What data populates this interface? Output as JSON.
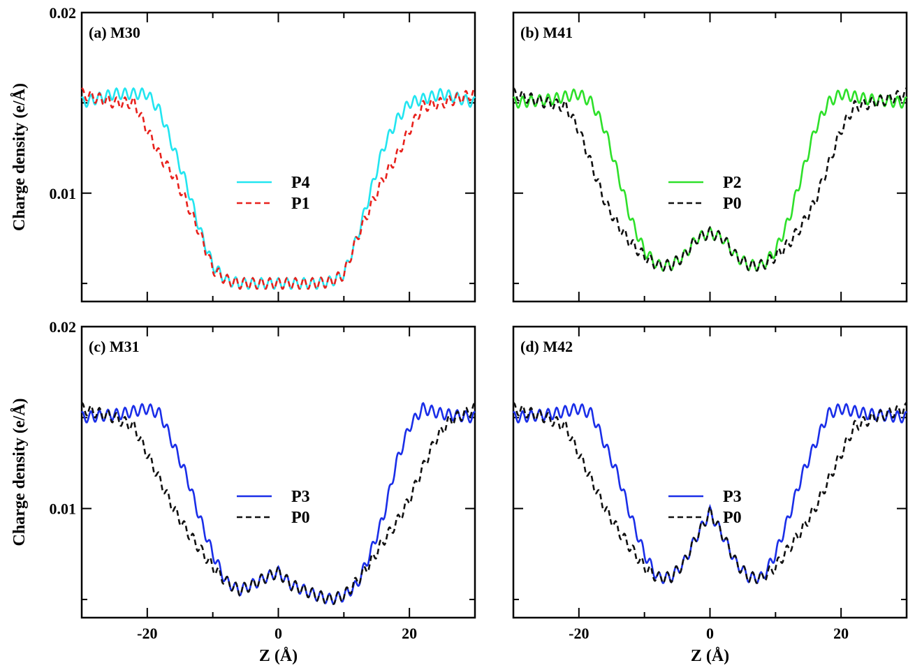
{
  "chart_data": [
    {
      "type": "line",
      "panel_label": "(a) M30",
      "xlim": [
        -30,
        30
      ],
      "ylim": [
        0.004,
        0.02
      ],
      "y_ticks": [
        "0.02",
        "0.01"
      ],
      "x_ticks": [],
      "ylabel": "Charge density (e/Å)",
      "xlabel": "",
      "legend_position": "center",
      "series": [
        {
          "name": "P4",
          "color": "#22e5f0",
          "style": "solid",
          "points": [
            [
              -30,
              0.015
            ],
            [
              -25,
              0.0155
            ],
            [
              -20,
              0.0155
            ],
            [
              -18,
              0.0145
            ],
            [
              -16,
              0.0125
            ],
            [
              -14,
              0.0105
            ],
            [
              -12,
              0.008
            ],
            [
              -10,
              0.006
            ],
            [
              -8,
              0.0052
            ],
            [
              -6,
              0.005
            ],
            [
              -2,
              0.005
            ],
            [
              0,
              0.005
            ],
            [
              2,
              0.005
            ],
            [
              6,
              0.005
            ],
            [
              8,
              0.0051
            ],
            [
              10,
              0.0055
            ],
            [
              12,
              0.0075
            ],
            [
              14,
              0.01
            ],
            [
              16,
              0.0125
            ],
            [
              18,
              0.014
            ],
            [
              20,
              0.015
            ],
            [
              25,
              0.0155
            ],
            [
              30,
              0.015
            ]
          ],
          "ripple": [
            0.0006,
            1.3
          ]
        },
        {
          "name": "P1",
          "color": "#e8211c",
          "style": "dashed",
          "points": [
            [
              -30,
              0.0155
            ],
            [
              -25,
              0.015
            ],
            [
              -22,
              0.015
            ],
            [
              -20,
              0.0135
            ],
            [
              -18,
              0.012
            ],
            [
              -16,
              0.011
            ],
            [
              -14,
              0.0095
            ],
            [
              -12,
              0.0078
            ],
            [
              -10,
              0.0058
            ],
            [
              -8,
              0.0052
            ],
            [
              -6,
              0.005
            ],
            [
              0,
              0.005
            ],
            [
              6,
              0.005
            ],
            [
              8,
              0.0051
            ],
            [
              10,
              0.0055
            ],
            [
              12,
              0.0075
            ],
            [
              14,
              0.0092
            ],
            [
              16,
              0.0108
            ],
            [
              18,
              0.012
            ],
            [
              20,
              0.0135
            ],
            [
              22,
              0.0148
            ],
            [
              25,
              0.015
            ],
            [
              30,
              0.0155
            ]
          ],
          "ripple": [
            0.0006,
            1.3
          ]
        }
      ]
    },
    {
      "type": "line",
      "panel_label": "(b) M41",
      "xlim": [
        -30,
        30
      ],
      "ylim": [
        0.004,
        0.02
      ],
      "y_ticks": [],
      "x_ticks": [],
      "ylabel": "",
      "xlabel": "",
      "legend_position": "center",
      "series": [
        {
          "name": "P2",
          "color": "#2ee02a",
          "style": "solid",
          "points": [
            [
              -30,
              0.015
            ],
            [
              -24,
              0.0152
            ],
            [
              -20,
              0.0155
            ],
            [
              -18,
              0.015
            ],
            [
              -16,
              0.0135
            ],
            [
              -14,
              0.011
            ],
            [
              -12,
              0.0085
            ],
            [
              -10,
              0.0068
            ],
            [
              -8,
              0.006
            ],
            [
              -6,
              0.006
            ],
            [
              -4,
              0.0065
            ],
            [
              -2,
              0.0075
            ],
            [
              0,
              0.0078
            ],
            [
              2,
              0.0075
            ],
            [
              4,
              0.0065
            ],
            [
              6,
              0.006
            ],
            [
              8,
              0.006
            ],
            [
              10,
              0.0068
            ],
            [
              12,
              0.0085
            ],
            [
              14,
              0.011
            ],
            [
              16,
              0.0135
            ],
            [
              18,
              0.015
            ],
            [
              20,
              0.0155
            ],
            [
              24,
              0.0152
            ],
            [
              30,
              0.015
            ]
          ],
          "ripple": [
            0.0006,
            1.3
          ]
        },
        {
          "name": "P0",
          "color": "#111111",
          "style": "dashed",
          "points": [
            [
              -30,
              0.0155
            ],
            [
              -25,
              0.015
            ],
            [
              -22,
              0.0148
            ],
            [
              -20,
              0.0135
            ],
            [
              -18,
              0.0115
            ],
            [
              -16,
              0.0095
            ],
            [
              -14,
              0.0082
            ],
            [
              -12,
              0.0072
            ],
            [
              -10,
              0.0065
            ],
            [
              -8,
              0.006
            ],
            [
              -6,
              0.006
            ],
            [
              -4,
              0.0065
            ],
            [
              -2,
              0.0075
            ],
            [
              0,
              0.0078
            ],
            [
              2,
              0.0075
            ],
            [
              4,
              0.0065
            ],
            [
              6,
              0.006
            ],
            [
              8,
              0.006
            ],
            [
              10,
              0.0065
            ],
            [
              12,
              0.0072
            ],
            [
              14,
              0.0082
            ],
            [
              16,
              0.0095
            ],
            [
              18,
              0.0115
            ],
            [
              20,
              0.0135
            ],
            [
              22,
              0.0148
            ],
            [
              25,
              0.015
            ],
            [
              30,
              0.0155
            ]
          ],
          "ripple": [
            0.0006,
            1.3
          ]
        }
      ]
    },
    {
      "type": "line",
      "panel_label": "(c) M31",
      "xlim": [
        -30,
        30
      ],
      "ylim": [
        0.004,
        0.02
      ],
      "y_ticks": [
        "0.02",
        "0.01"
      ],
      "x_ticks": [
        "-20",
        "0",
        "20"
      ],
      "ylabel": "Charge density (e/Å)",
      "xlabel": "Z (Å)",
      "legend_position": "center",
      "series": [
        {
          "name": "P3",
          "color": "#1a2ee8",
          "style": "solid",
          "points": [
            [
              -30,
              0.015
            ],
            [
              -24,
              0.0152
            ],
            [
              -20,
              0.0155
            ],
            [
              -18,
              0.0152
            ],
            [
              -16,
              0.0135
            ],
            [
              -14,
              0.0118
            ],
            [
              -12,
              0.0095
            ],
            [
              -10,
              0.0075
            ],
            [
              -8,
              0.006
            ],
            [
              -6,
              0.0055
            ],
            [
              -4,
              0.0058
            ],
            [
              -2,
              0.0062
            ],
            [
              0,
              0.0065
            ],
            [
              2,
              0.0058
            ],
            [
              4,
              0.0055
            ],
            [
              6,
              0.0052
            ],
            [
              8,
              0.005
            ],
            [
              10,
              0.0052
            ],
            [
              12,
              0.0058
            ],
            [
              14,
              0.0075
            ],
            [
              16,
              0.0095
            ],
            [
              18,
              0.0125
            ],
            [
              20,
              0.0145
            ],
            [
              22,
              0.0155
            ],
            [
              25,
              0.0152
            ],
            [
              30,
              0.015
            ]
          ],
          "ripple": [
            0.0006,
            1.3
          ]
        },
        {
          "name": "P0",
          "color": "#111111",
          "style": "dashed",
          "points": [
            [
              -30,
              0.0155
            ],
            [
              -25,
              0.015
            ],
            [
              -22,
              0.0145
            ],
            [
              -20,
              0.013
            ],
            [
              -18,
              0.0115
            ],
            [
              -16,
              0.01
            ],
            [
              -14,
              0.0088
            ],
            [
              -12,
              0.0078
            ],
            [
              -10,
              0.0068
            ],
            [
              -8,
              0.006
            ],
            [
              -6,
              0.0055
            ],
            [
              -4,
              0.0058
            ],
            [
              -2,
              0.0062
            ],
            [
              0,
              0.0065
            ],
            [
              2,
              0.0058
            ],
            [
              4,
              0.0055
            ],
            [
              6,
              0.0052
            ],
            [
              8,
              0.005
            ],
            [
              10,
              0.0052
            ],
            [
              12,
              0.006
            ],
            [
              14,
              0.007
            ],
            [
              16,
              0.0082
            ],
            [
              18,
              0.0092
            ],
            [
              20,
              0.0105
            ],
            [
              22,
              0.0122
            ],
            [
              24,
              0.0138
            ],
            [
              26,
              0.0148
            ],
            [
              30,
              0.0155
            ]
          ],
          "ripple": [
            0.0006,
            1.3
          ]
        }
      ]
    },
    {
      "type": "line",
      "panel_label": "(d) M42",
      "xlim": [
        -30,
        30
      ],
      "ylim": [
        0.004,
        0.02
      ],
      "y_ticks": [],
      "x_ticks": [
        "-20",
        "0",
        "20"
      ],
      "ylabel": "",
      "xlabel": "Z (Å)",
      "legend_position": "center",
      "series": [
        {
          "name": "P3",
          "color": "#1a2ee8",
          "style": "solid",
          "points": [
            [
              -30,
              0.015
            ],
            [
              -24,
              0.0152
            ],
            [
              -20,
              0.0155
            ],
            [
              -18,
              0.0152
            ],
            [
              -16,
              0.0135
            ],
            [
              -14,
              0.0118
            ],
            [
              -12,
              0.0095
            ],
            [
              -10,
              0.0075
            ],
            [
              -8,
              0.0062
            ],
            [
              -6,
              0.0062
            ],
            [
              -4,
              0.007
            ],
            [
              -2,
              0.0085
            ],
            [
              0,
              0.0098
            ],
            [
              2,
              0.0085
            ],
            [
              4,
              0.007
            ],
            [
              6,
              0.0062
            ],
            [
              8,
              0.0062
            ],
            [
              10,
              0.0075
            ],
            [
              12,
              0.0095
            ],
            [
              14,
              0.0118
            ],
            [
              16,
              0.0135
            ],
            [
              18,
              0.0152
            ],
            [
              20,
              0.0155
            ],
            [
              24,
              0.0152
            ],
            [
              30,
              0.015
            ]
          ],
          "ripple": [
            0.0006,
            1.3
          ]
        },
        {
          "name": "P0",
          "color": "#111111",
          "style": "dashed",
          "points": [
            [
              -30,
              0.0155
            ],
            [
              -25,
              0.015
            ],
            [
              -22,
              0.0145
            ],
            [
              -20,
              0.013
            ],
            [
              -18,
              0.0115
            ],
            [
              -16,
              0.01
            ],
            [
              -14,
              0.0088
            ],
            [
              -12,
              0.0078
            ],
            [
              -10,
              0.0068
            ],
            [
              -8,
              0.0062
            ],
            [
              -6,
              0.0062
            ],
            [
              -4,
              0.007
            ],
            [
              -2,
              0.0085
            ],
            [
              0,
              0.0098
            ],
            [
              2,
              0.0085
            ],
            [
              4,
              0.007
            ],
            [
              6,
              0.0062
            ],
            [
              8,
              0.0062
            ],
            [
              10,
              0.0068
            ],
            [
              12,
              0.0078
            ],
            [
              14,
              0.0088
            ],
            [
              16,
              0.01
            ],
            [
              18,
              0.0115
            ],
            [
              20,
              0.013
            ],
            [
              22,
              0.0145
            ],
            [
              25,
              0.015
            ],
            [
              30,
              0.0155
            ]
          ],
          "ripple": [
            0.0006,
            1.3
          ]
        }
      ]
    }
  ]
}
